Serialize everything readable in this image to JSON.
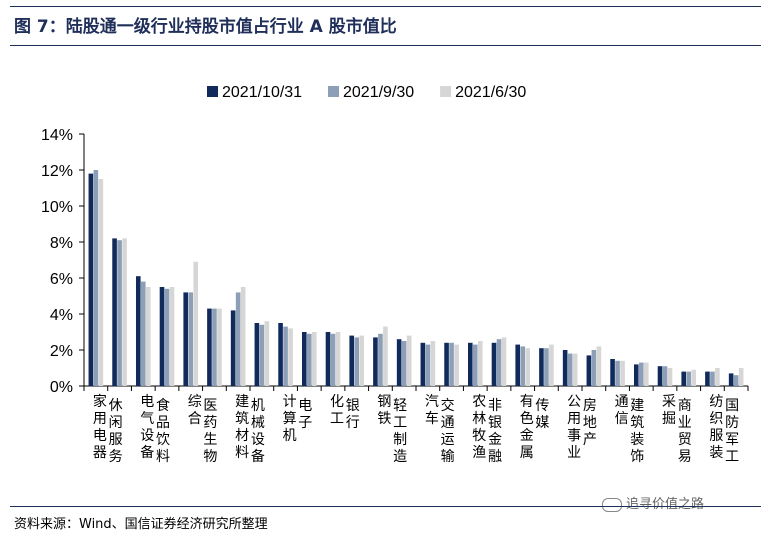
{
  "title": "图 7：陆股通一级行业持股市值占行业 A 股市值比",
  "source": "资料来源：Wind、国信证券经济研究所整理",
  "watermark": "追寻价值之路",
  "colors": {
    "frame": "#1f2f5a",
    "s1": "#102a5c",
    "s2": "#8c9fb6",
    "s3": "#d6d6d6"
  },
  "chart_data": {
    "type": "bar",
    "title": "",
    "xlabel": "",
    "ylabel": "",
    "ylim": [
      0,
      14
    ],
    "yticks": [
      "0%",
      "2%",
      "4%",
      "6%",
      "8%",
      "10%",
      "12%",
      "14%"
    ],
    "legend_position": "top-center",
    "grid": false,
    "categories": [
      "家用电器",
      "休闲服务",
      "电气设备",
      "食品饮料",
      "综合",
      "医药生物",
      "建筑材料",
      "机械设备",
      "计算机",
      "电子",
      "化工",
      "银行",
      "钢铁",
      "轻工制造",
      "汽车",
      "交通运输",
      "农林牧渔",
      "非银金融",
      "有色金属",
      "传媒",
      "公用事业",
      "房地产",
      "通信",
      "建筑装饰",
      "采掘",
      "商业贸易",
      "纺织服装",
      "国防军工"
    ],
    "series": [
      {
        "name": "2021/10/31",
        "values": [
          11.8,
          8.2,
          6.1,
          5.5,
          5.2,
          4.3,
          4.2,
          3.5,
          3.5,
          3.0,
          3.0,
          2.8,
          2.7,
          2.6,
          2.4,
          2.4,
          2.4,
          2.4,
          2.3,
          2.1,
          2.0,
          1.7,
          1.5,
          1.2,
          1.1,
          0.8,
          0.8,
          0.7
        ]
      },
      {
        "name": "2021/9/30",
        "values": [
          12.0,
          8.1,
          5.8,
          5.4,
          5.2,
          4.3,
          5.2,
          3.4,
          3.3,
          2.9,
          2.9,
          2.7,
          2.9,
          2.5,
          2.3,
          2.4,
          2.3,
          2.6,
          2.2,
          2.1,
          1.8,
          2.0,
          1.4,
          1.3,
          1.1,
          0.8,
          0.8,
          0.6
        ]
      },
      {
        "name": "2021/6/30",
        "values": [
          11.5,
          8.2,
          5.5,
          5.5,
          6.9,
          4.3,
          5.5,
          3.6,
          3.2,
          3.0,
          3.0,
          2.8,
          3.3,
          2.8,
          2.5,
          2.3,
          2.5,
          2.7,
          2.1,
          2.3,
          1.8,
          2.2,
          1.4,
          1.3,
          1.0,
          0.9,
          1.0,
          1.0
        ]
      }
    ]
  }
}
